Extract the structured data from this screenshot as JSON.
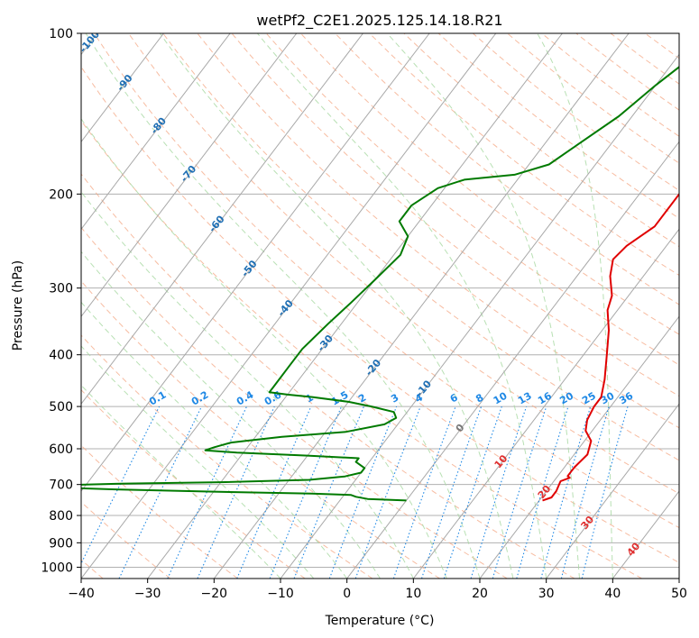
{
  "chart_data": {
    "type": "skew-t",
    "title": "wetPf2_C2E1.2025.125.14.18.R21",
    "xlabel": "Temperature (°C)",
    "ylabel": "Pressure (hPa)",
    "xlim": [
      -40,
      50
    ],
    "ylim": [
      1050,
      100
    ],
    "y_scale": "log",
    "grid": true,
    "x_ticks": [
      "−40",
      "−30",
      "−20",
      "−10",
      "0",
      "10",
      "20",
      "30",
      "40",
      "50"
    ],
    "x_tick_values": [
      -40,
      -30,
      -20,
      -10,
      0,
      10,
      20,
      30,
      40,
      50
    ],
    "y_ticks": [
      "100",
      "200",
      "300",
      "400",
      "500",
      "600",
      "700",
      "800",
      "900",
      "1000"
    ],
    "y_tick_values": [
      100,
      200,
      300,
      400,
      500,
      600,
      700,
      800,
      900,
      1000
    ],
    "colors": {
      "temperature": "#e00000",
      "dewpoint": "#007a00",
      "isotherm": "#a8a8a8",
      "dry_adiabat": "#f4a582",
      "moist_adiabat": "#a6d8a0",
      "mixing_ratio": "#1e88e5",
      "isotherm_label": "#1f6fb4",
      "ice_label": "#e03030",
      "freezing_label": "#777777",
      "isobar": "#b0b0b0"
    },
    "isotherm_labels": {
      "labels": [
        "-100",
        "-90",
        "-80",
        "-70",
        "-60",
        "-50",
        "-40",
        "-30",
        "-20",
        "-10"
      ],
      "values": [
        -100,
        -90,
        -80,
        -70,
        -60,
        -50,
        -40,
        -30,
        -20,
        -10
      ],
      "pressures": [
        103,
        123,
        148,
        182,
        226,
        274,
        325,
        378,
        420,
        460
      ]
    },
    "ice_isotherm_labels": {
      "labels": [
        "0",
        "10",
        "20",
        "30",
        "40"
      ],
      "values": [
        0,
        10,
        20,
        30,
        40
      ],
      "pressures": [
        545,
        630,
        718,
        820,
        920
      ]
    },
    "mixing_ratio_labels": [
      "0.1",
      "0.2",
      "0.4",
      "0.6",
      "1",
      "1.5",
      "2",
      "3",
      "4",
      "6",
      "8",
      "10",
      "13",
      "16",
      "20",
      "25",
      "30",
      "36"
    ],
    "mixing_ratio_values": [
      0.1,
      0.2,
      0.4,
      0.6,
      1,
      1.5,
      2,
      3,
      4,
      6,
      8,
      10,
      13,
      16,
      20,
      25,
      30,
      36
    ],
    "series": [
      {
        "name": "",
        "points": [
          [
            20.5,
            750
          ],
          [
            21.5,
            740
          ],
          [
            21.5,
            720
          ],
          [
            21,
            690
          ],
          [
            22,
            680
          ],
          [
            21.5,
            675
          ],
          [
            21.5,
            650
          ],
          [
            22,
            615
          ],
          [
            21,
            580
          ],
          [
            19,
            555
          ],
          [
            18,
            530
          ],
          [
            17.5,
            500
          ],
          [
            17.5,
            480
          ],
          [
            16,
            445
          ],
          [
            13.5,
            400
          ],
          [
            11,
            360
          ],
          [
            8.5,
            330
          ],
          [
            7.5,
            310
          ],
          [
            5,
            285
          ],
          [
            3.5,
            265
          ],
          [
            4,
            250
          ],
          [
            6,
            230
          ],
          [
            6,
            200
          ],
          [
            5.5,
            170
          ],
          [
            5,
            140
          ],
          [
            4,
            120
          ],
          [
            3.5,
            110
          ],
          [
            4,
            105
          ],
          [
            5,
            102
          ],
          [
            6.5,
            100
          ]
        ]
      },
      {
        "name": "",
        "points": [
          [
            0,
            750
          ],
          [
            -6,
            745
          ],
          [
            -8,
            738
          ],
          [
            -9,
            732
          ],
          [
            -15,
            728
          ],
          [
            -30,
            722
          ],
          [
            -45,
            715
          ],
          [
            -56,
            708
          ],
          [
            -54,
            702
          ],
          [
            -44,
            697
          ],
          [
            -30,
            693
          ],
          [
            -17,
            686
          ],
          [
            -12,
            676
          ],
          [
            -10,
            665
          ],
          [
            -10,
            652
          ],
          [
            -12,
            635
          ],
          [
            -12,
            625
          ],
          [
            -20,
            618
          ],
          [
            -31,
            610
          ],
          [
            -36,
            604
          ],
          [
            -35,
            596
          ],
          [
            -34,
            590
          ],
          [
            -33,
            584
          ],
          [
            -31,
            580
          ],
          [
            -26,
            570
          ],
          [
            -17,
            558
          ],
          [
            -12,
            540
          ],
          [
            -11,
            525
          ],
          [
            -12,
            512
          ],
          [
            -16,
            500
          ],
          [
            -20,
            490
          ],
          [
            -26,
            480
          ],
          [
            -30,
            475
          ],
          [
            -33,
            470
          ],
          [
            -33,
            460
          ],
          [
            -33,
            420
          ],
          [
            -33,
            390
          ],
          [
            -32,
            350
          ],
          [
            -31,
            320
          ],
          [
            -30,
            290
          ],
          [
            -29,
            260
          ],
          [
            -30,
            240
          ],
          [
            -33,
            225
          ],
          [
            -33,
            210
          ],
          [
            -31,
            195
          ],
          [
            -28,
            188
          ],
          [
            -21,
            184
          ],
          [
            -17,
            176
          ],
          [
            -15,
            162
          ],
          [
            -12,
            143
          ],
          [
            -10,
            125
          ],
          [
            -8,
            112
          ],
          [
            -6,
            105
          ],
          [
            -4,
            100
          ]
        ]
      }
    ]
  }
}
